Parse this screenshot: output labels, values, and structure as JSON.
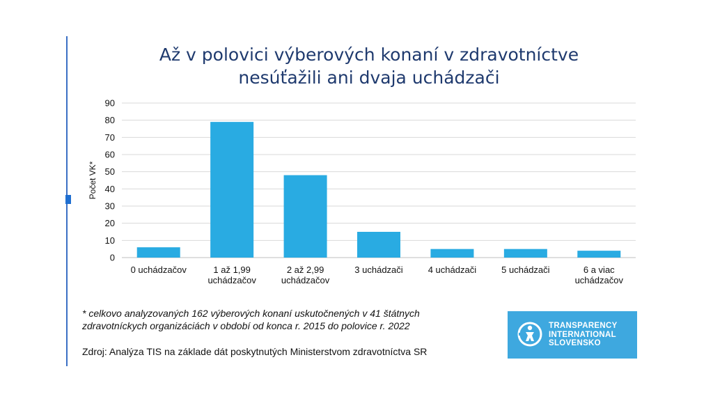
{
  "header": {
    "title_line1": "Až v polovici výberových konaní v zdravotníctve",
    "title_line2": "nesúťažili ani dvaja uchádzači"
  },
  "chart_data": {
    "type": "bar",
    "categories": [
      [
        "0 uchádzačov"
      ],
      [
        "1 až 1,99",
        "uchádzačov"
      ],
      [
        "2 až 2,99",
        "uchádzačov"
      ],
      [
        "3 uchádzači"
      ],
      [
        "4 uchádzači"
      ],
      [
        "5 uchádzači"
      ],
      [
        "6 a viac",
        "uchádzačov"
      ]
    ],
    "values": [
      6,
      79,
      48,
      15,
      5,
      5,
      4
    ],
    "ylabel": "Počet VK*",
    "ylim": [
      0,
      90
    ],
    "yticks": [
      0,
      10,
      20,
      30,
      40,
      50,
      60,
      70,
      80,
      90
    ],
    "grid": true,
    "bar_color": "#29abe2"
  },
  "footnote": {
    "line1": "* celkovo analyzovaných  162 výberových  konaní uskutočnených v 41 štátnych",
    "line2": "zdravotníckych organizáciách v období od konca r. 2015 do polovice r. 2022"
  },
  "source": "Zdroj: Analýza TIS na základe dát poskytnutých Ministerstvom zdravotníctva SR",
  "logo": {
    "line1": "TRANSPARENCY",
    "line2": "INTERNATIONAL",
    "line3": "SLOVENSKO",
    "color": "#3ea8df"
  }
}
